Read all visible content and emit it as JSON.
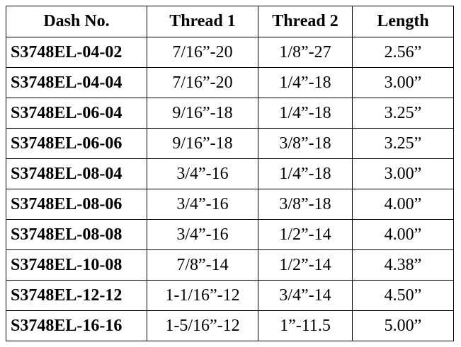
{
  "table": {
    "header": [
      "Dash No.",
      "Thread 1",
      "Thread 2",
      "Length"
    ],
    "rows": [
      [
        "S3748EL-04-02",
        "7/16”-20",
        "1/8”-27",
        "2.56”"
      ],
      [
        "S3748EL-04-04",
        "7/16”-20",
        "1/4”-18",
        "3.00”"
      ],
      [
        "S3748EL-06-04",
        "9/16”-18",
        "1/4”-18",
        "3.25”"
      ],
      [
        "S3748EL-06-06",
        "9/16”-18",
        "3/8”-18",
        "3.25”"
      ],
      [
        "S3748EL-08-04",
        "3/4”-16",
        "1/4”-18",
        "3.00”"
      ],
      [
        "S3748EL-08-06",
        "3/4”-16",
        "3/8”-18",
        "4.00”"
      ],
      [
        "S3748EL-08-08",
        "3/4”-16",
        "1/2”-14",
        "4.00”"
      ],
      [
        "S3748EL-10-08",
        "7/8”-14",
        "1/2”-14",
        "4.38”"
      ],
      [
        "S3748EL-12-12",
        "1-1/16”-12",
        "3/4”-14",
        "4.50”"
      ],
      [
        "S3748EL-16-16",
        "1-5/16”-12",
        "1”-11.5",
        "5.00”"
      ]
    ]
  }
}
